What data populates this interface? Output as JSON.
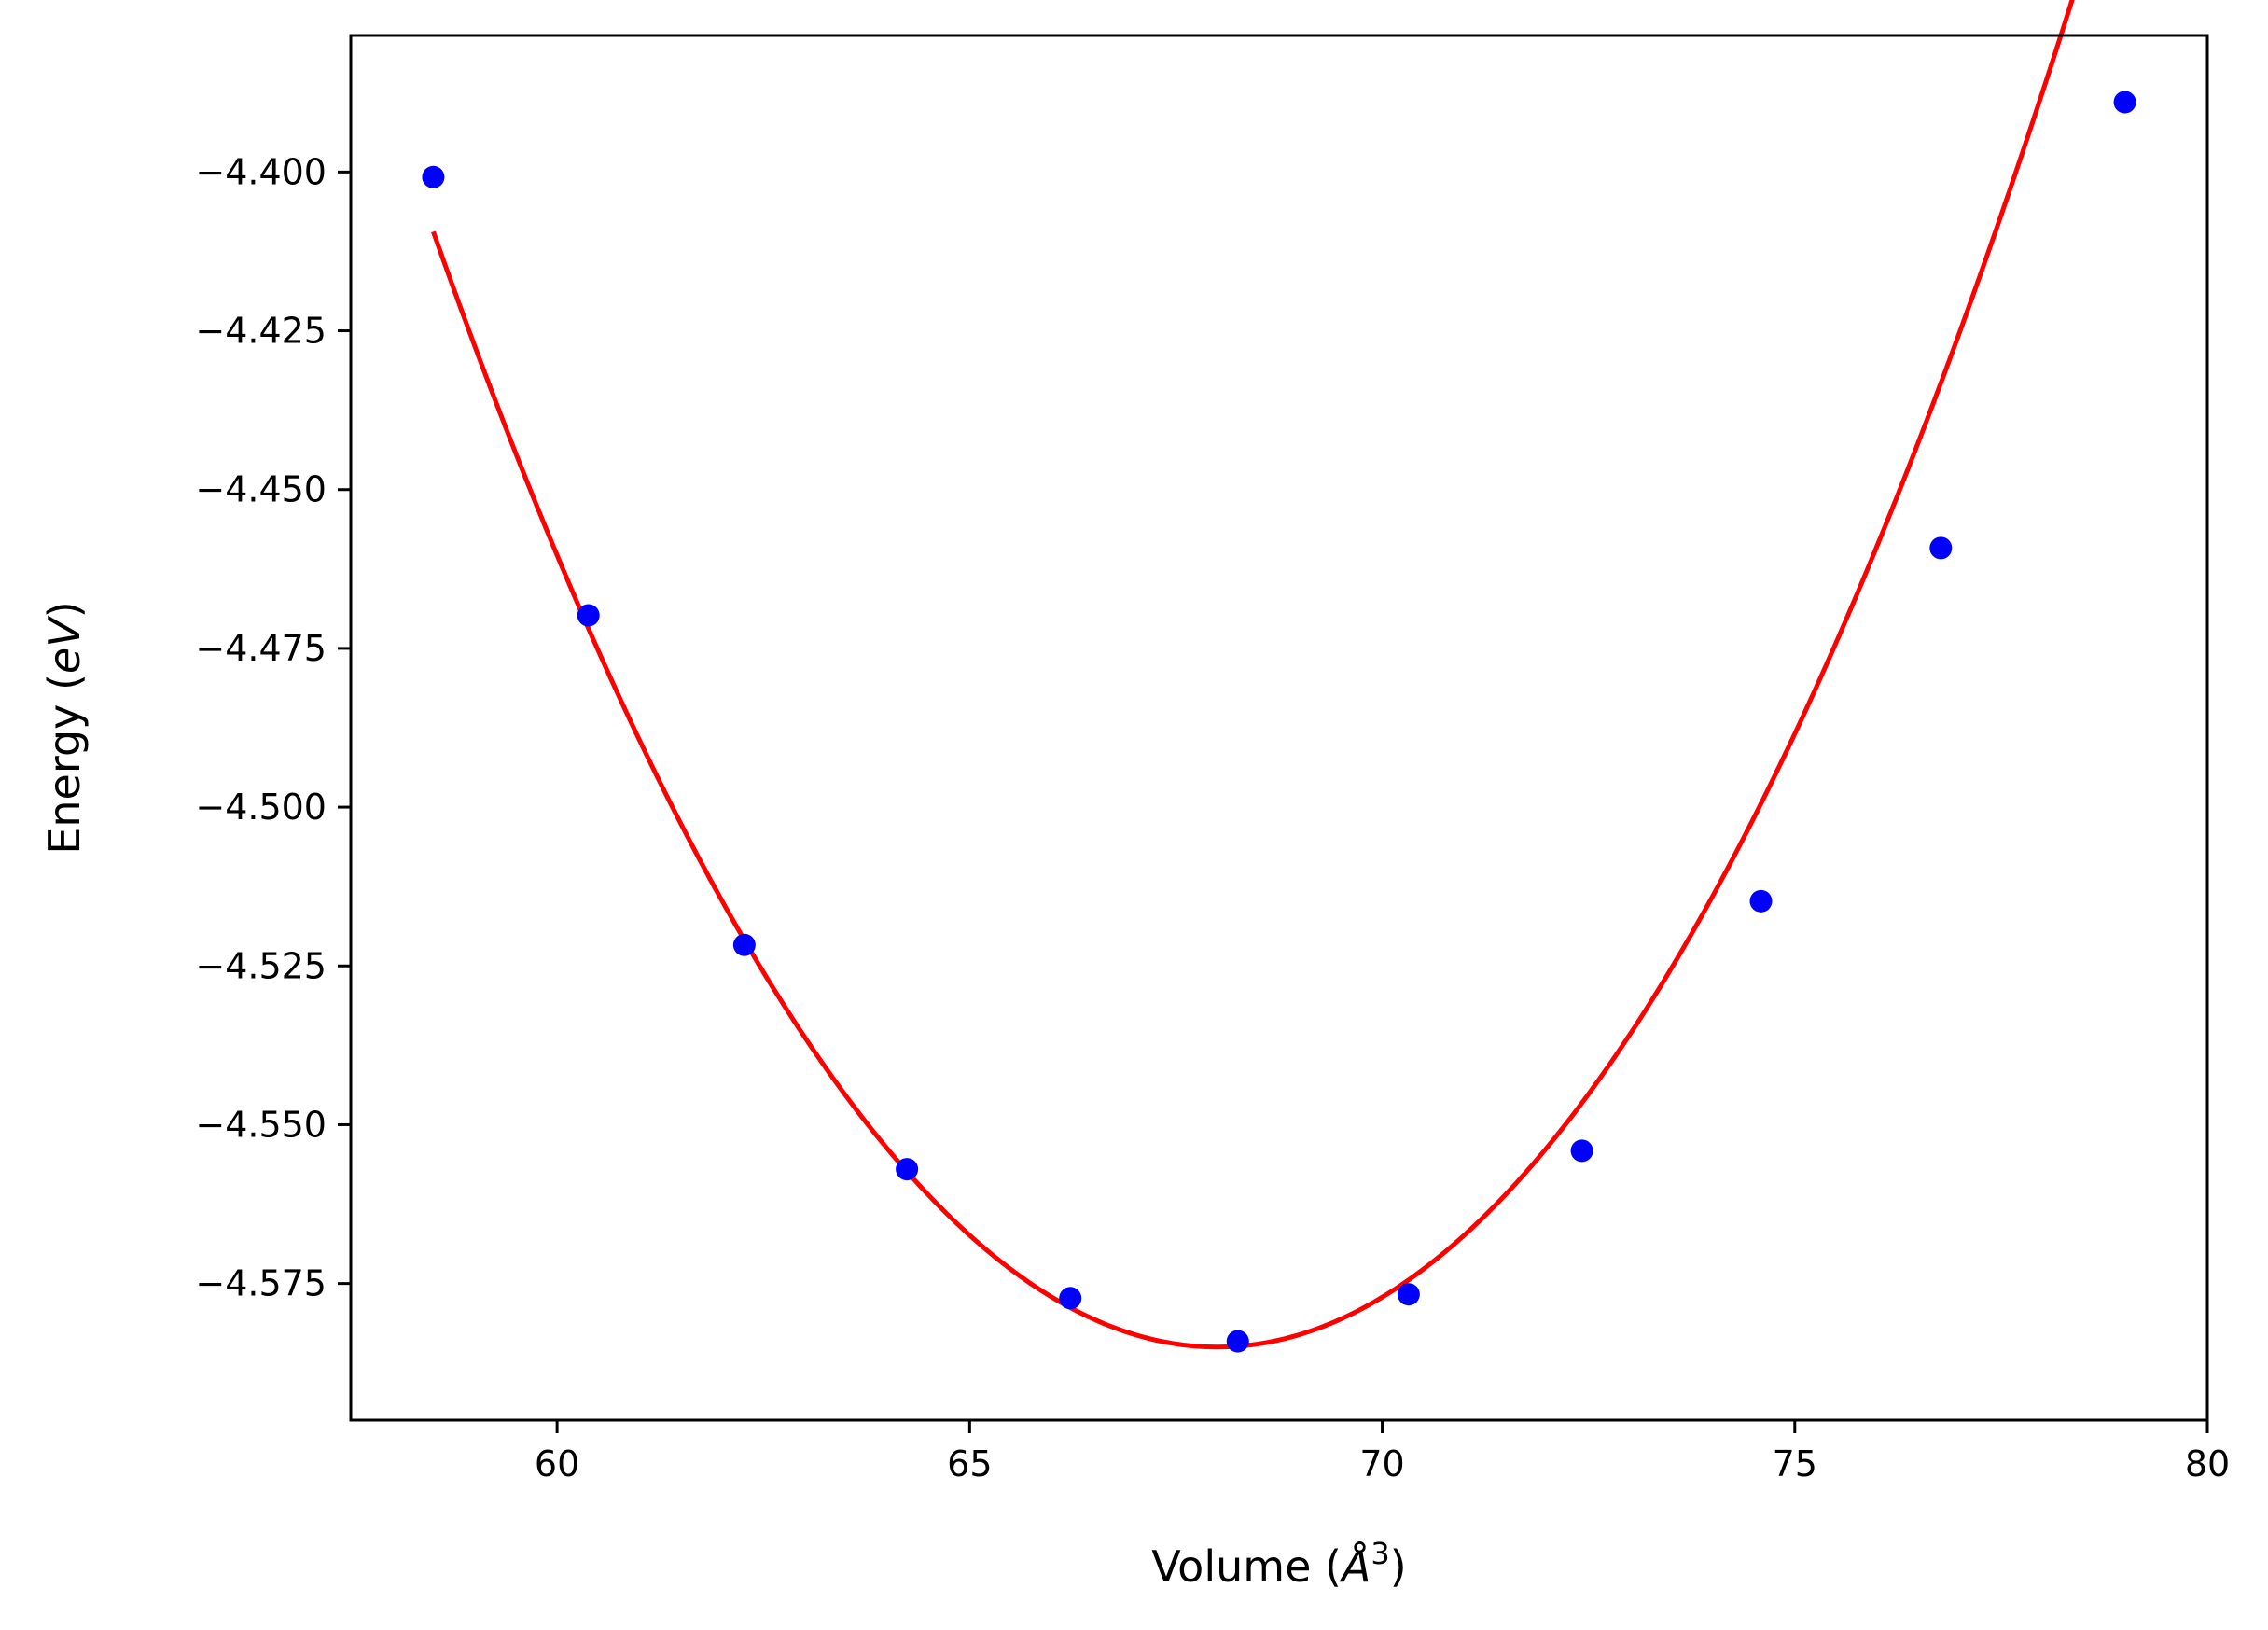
{
  "chart_data": {
    "type": "scatter",
    "xlabel_main": "Volume (",
    "xlabel_unit": "Å",
    "xlabel_sup": "3",
    "xlabel_end": ")",
    "ylabel_main": "Energy (",
    "ylabel_unit": "eV",
    "ylabel_end": ")",
    "xlim": [
      57.5,
      80
    ],
    "ylim": [
      -4.5965,
      -4.3785
    ],
    "x_ticks": [
      60,
      65,
      70,
      75,
      80
    ],
    "x_tick_labels": [
      "60",
      "65",
      "70",
      "75",
      "80"
    ],
    "y_ticks": [
      -4.4,
      -4.425,
      -4.45,
      -4.475,
      -4.5,
      -4.525,
      -4.55,
      -4.575
    ],
    "y_tick_labels": [
      "−4.400",
      "−4.425",
      "−4.450",
      "−4.475",
      "−4.500",
      "−4.525",
      "−4.550",
      "−4.575"
    ],
    "grid": false,
    "series": [
      {
        "kind": "points",
        "color": "#0000ff",
        "x": [
          58.5,
          60.38,
          62.27,
          64.24,
          66.22,
          68.25,
          70.32,
          72.42,
          74.59,
          76.77,
          79.0
        ],
        "y": [
          -4.4008,
          -4.4698,
          -4.5217,
          -4.557,
          -4.5773,
          -4.5841,
          -4.5767,
          -4.5541,
          -4.5148,
          -4.4592,
          -4.389
        ]
      },
      {
        "kind": "fit-line",
        "color": "#ff0000",
        "fit": {
          "E0": -4.585,
          "V0": 68.0,
          "B": 0.00196,
          "Bp": 1.5e-06
        }
      }
    ]
  }
}
